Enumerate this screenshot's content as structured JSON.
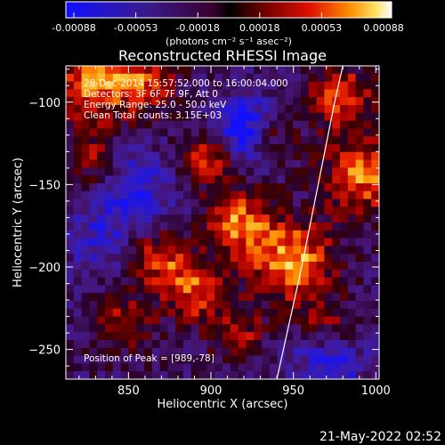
{
  "chart_data": {
    "type": "heatmap",
    "title": "Reconstructed RHESSI Image",
    "xlabel": "Heliocentric X (arcsec)",
    "ylabel": "Heliocentric Y (arcsec)",
    "xlim": [
      812,
      1002
    ],
    "ylim": [
      -268,
      -78
    ],
    "x_ticks": [
      850,
      900,
      950,
      1000
    ],
    "y_ticks": [
      -100,
      -150,
      -200,
      -250
    ],
    "colorbar": {
      "ticks": [
        "-0.00088",
        "-0.00053",
        "-0.00018",
        "0.00018",
        "0.00053",
        "0.00088"
      ],
      "label": "(photons cm⁻² s⁻¹ asec⁻²)",
      "range": [
        -0.00088,
        0.00088
      ]
    },
    "annotations": [
      "28-Dec-2014 15:57:52.000 to 16:00:04.000",
      "Detectors: 3F 6F 7F 9F, Att 0",
      "Energy Range: 25.0 - 50.0 keV",
      "Clean    Total counts: 3.15E+03"
    ],
    "peak_label": "Position of Peak = [989,-78]",
    "limb_curve": [
      [
        940,
        -268
      ],
      [
        955,
        -200
      ],
      [
        965,
        -150
      ],
      [
        975,
        -100
      ],
      [
        980,
        -78
      ]
    ],
    "grid": false,
    "legend": "none"
  },
  "footer": {
    "timestamp": "21-May-2022 02:52"
  }
}
